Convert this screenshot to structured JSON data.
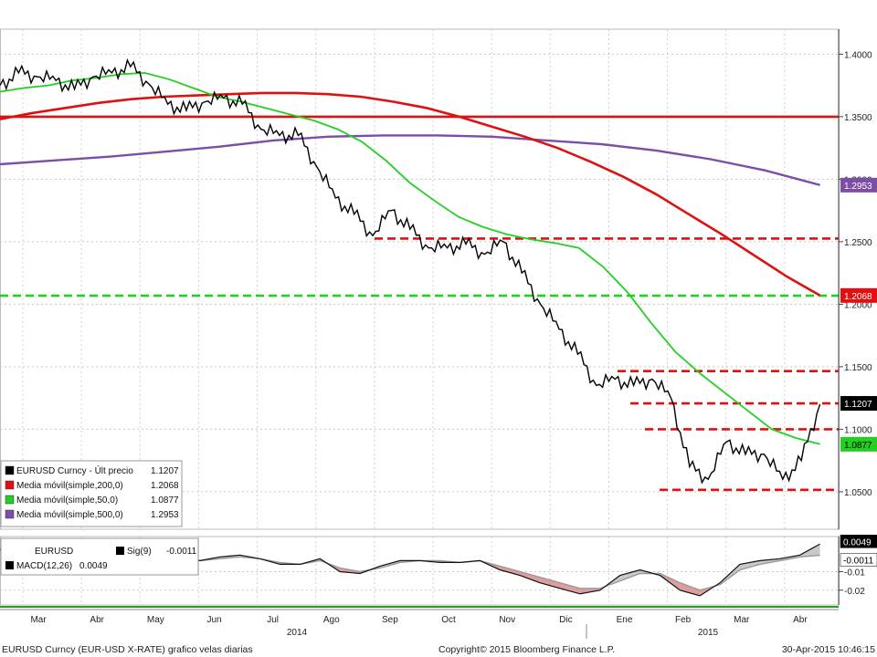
{
  "chart_data": {
    "type": "line",
    "grid": true,
    "main_panel": {
      "y_range": [
        1.02,
        1.42
      ],
      "y_ticks": [
        "1.4000",
        "1.3500",
        "1.3000",
        "1.2500",
        "1.2000",
        "1.1500",
        "1.1000",
        "1.0500"
      ],
      "y_tick_values": [
        1.4,
        1.35,
        1.3,
        1.25,
        1.2,
        1.15,
        1.1,
        1.05
      ],
      "x_range_index": [
        0,
        45
      ],
      "price_series": {
        "name": "EURUSD Curncy - Últ precio",
        "last": "1.1207",
        "x_index": [
          0,
          1,
          2,
          3,
          4,
          5,
          6,
          7,
          8,
          9,
          10,
          11,
          12,
          13,
          14,
          15,
          16,
          17,
          18,
          19,
          20,
          21,
          22,
          23,
          24,
          25,
          26,
          27,
          28,
          29,
          30,
          31,
          32,
          33,
          34,
          35,
          36,
          37,
          38,
          39,
          40,
          41,
          42,
          43,
          44
        ],
        "close": [
          1.375,
          1.385,
          1.382,
          1.379,
          1.372,
          1.382,
          1.385,
          1.39,
          1.376,
          1.36,
          1.355,
          1.362,
          1.365,
          1.36,
          1.34,
          1.335,
          1.335,
          1.31,
          1.285,
          1.272,
          1.255,
          1.275,
          1.26,
          1.245,
          1.245,
          1.248,
          1.24,
          1.25,
          1.225,
          1.2,
          1.18,
          1.16,
          1.135,
          1.14,
          1.135,
          1.14,
          1.125,
          1.07,
          1.06,
          1.09,
          1.08,
          1.08,
          1.06,
          1.075,
          1.12
        ],
        "color": "#000000"
      },
      "moving_averages": [
        {
          "name": "Media móvil(simple,200,0)",
          "value": "1.2068",
          "color": "#e01010",
          "values": [
            1.348,
            1.353,
            1.357,
            1.361,
            1.364,
            1.366,
            1.367,
            1.368,
            1.369,
            1.369,
            1.368,
            1.366,
            1.362,
            1.357,
            1.35,
            1.342,
            1.334,
            1.325,
            1.314,
            1.302,
            1.288,
            1.272,
            1.256,
            1.239,
            1.222,
            1.207
          ]
        },
        {
          "name": "Media móvil(simple,50,0)",
          "value": "1.0877",
          "color": "#22d022",
          "values": [
            1.37,
            1.373,
            1.375,
            1.379,
            1.381,
            1.384,
            1.385,
            1.38,
            1.373,
            1.366,
            1.362,
            1.357,
            1.352,
            1.347,
            1.34,
            1.33,
            1.315,
            1.297,
            1.283,
            1.27,
            1.262,
            1.256,
            1.252,
            1.249,
            1.245,
            1.23,
            1.21,
            1.185,
            1.162,
            1.145,
            1.13,
            1.115,
            1.1,
            1.093,
            1.088
          ]
        },
        {
          "name": "Media móvil(simple,500,0)",
          "value": "1.2953",
          "color": "#7b4ea8",
          "values": [
            1.312,
            1.315,
            1.318,
            1.322,
            1.326,
            1.331,
            1.334,
            1.335,
            1.335,
            1.334,
            1.331,
            1.328,
            1.323,
            1.316,
            1.307,
            1.2953
          ]
        }
      ],
      "price_label": {
        "value": "1.1207"
      },
      "horizontal_lines": [
        {
          "y": 1.35,
          "style": "solid",
          "color": "#e01010"
        },
        {
          "y": 1.2068,
          "style": "dashed",
          "color": "#22d022"
        },
        {
          "y": 1.2525,
          "style": "dashed",
          "color": "#e01010"
        },
        {
          "y": 1.1465,
          "style": "dashed",
          "color": "#e01010"
        },
        {
          "y": 1.1207,
          "style": "dashed",
          "color": "#e01010"
        },
        {
          "y": 1.1,
          "style": "dashed",
          "color": "#e01010"
        },
        {
          "y": 1.0515,
          "style": "dashed",
          "color": "#e01010"
        }
      ]
    },
    "macd_panel": {
      "y_range": [
        -0.028,
        0.009
      ],
      "y_ticks": [
        "-0.01",
        "-0.02"
      ],
      "y_tick_values": [
        -0.01,
        -0.02
      ],
      "labels": {
        "series": "EURUSD",
        "signal": "Sig(9)",
        "signal_value": "-0.0011",
        "macd": "MACD(12,26)",
        "macd_value": "0.0049"
      },
      "value_labels": [
        "0.0049",
        "-0.0011"
      ],
      "macd": [
        0.002,
        0.004,
        0.001,
        -0.002,
        -0.004,
        -0.003,
        0.002,
        0.004,
        0.001,
        -0.003,
        -0.004,
        -0.002,
        -0.001,
        -0.003,
        -0.006,
        -0.006,
        -0.003,
        -0.01,
        -0.011,
        -0.007,
        -0.004,
        -0.004,
        -0.005,
        -0.005,
        -0.004,
        -0.009,
        -0.012,
        -0.016,
        -0.019,
        -0.022,
        -0.02,
        -0.012,
        -0.009,
        -0.012,
        -0.02,
        -0.023,
        -0.016,
        -0.006,
        -0.004,
        -0.003,
        -0.001,
        0.005
      ],
      "signal": [
        0.001,
        0.003,
        0.002,
        0.0,
        -0.003,
        -0.003,
        0.0,
        0.003,
        0.002,
        -0.002,
        -0.004,
        -0.003,
        -0.002,
        -0.003,
        -0.005,
        -0.006,
        -0.004,
        -0.008,
        -0.01,
        -0.008,
        -0.005,
        -0.004,
        -0.004,
        -0.005,
        -0.004,
        -0.007,
        -0.01,
        -0.013,
        -0.016,
        -0.019,
        -0.019,
        -0.015,
        -0.011,
        -0.011,
        -0.016,
        -0.02,
        -0.017,
        -0.009,
        -0.006,
        -0.004,
        -0.002,
        -0.0011
      ]
    },
    "x_axis": {
      "months": [
        "Mar",
        "Abr",
        "May",
        "Jun",
        "Jul",
        "Ago",
        "Sep",
        "Oct",
        "Nov",
        "Dic",
        "Ene",
        "Feb",
        "Mar",
        "Abr"
      ],
      "years": [
        "2014",
        "2015"
      ]
    }
  },
  "legend": [
    {
      "text": "EURUSD Curncy - Últ precio",
      "value": "1.1207",
      "color": "#000000"
    },
    {
      "text": "Media móvil(simple,200,0)",
      "value": "1.2068",
      "color": "#e01010"
    },
    {
      "text": "Media móvil(simple,50,0)",
      "value": "1.0877",
      "color": "#22d022"
    },
    {
      "text": "Media móvil(simple,500,0)",
      "value": "1.2953",
      "color": "#7b4ea8"
    }
  ],
  "footer": {
    "left": "EURUSD Curncy (EUR-USD X-RATE) grafico velas diarias",
    "center": "Copyright© 2015 Bloomberg Finance L.P.",
    "right": "30-Apr-2015 10:46:15"
  }
}
